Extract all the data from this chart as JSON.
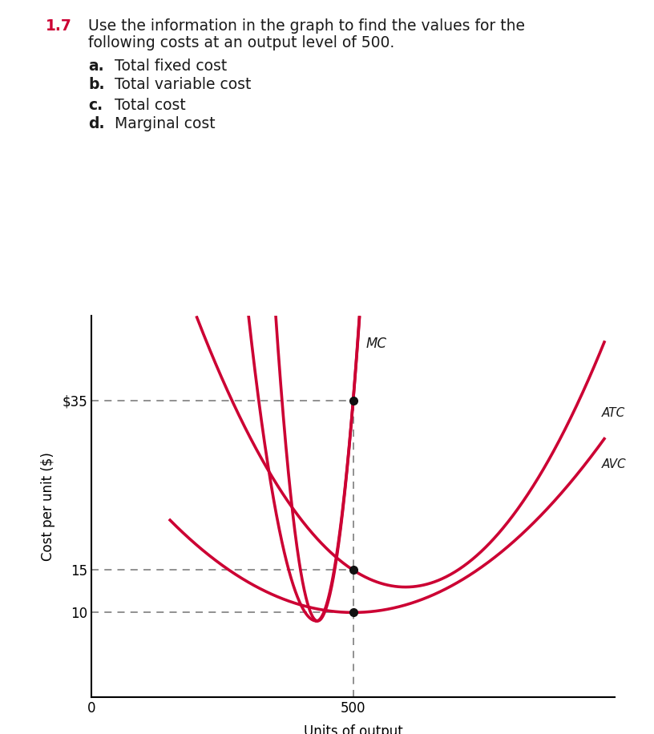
{
  "title_number": "1.7",
  "title_line1": "Use the information in the graph to find the values for the",
  "title_line2": "following costs at an output level of 500.",
  "items": [
    {
      "label": "a.",
      "text": "Total fixed cost"
    },
    {
      "label": "b.",
      "text": "Total variable cost"
    },
    {
      "label": "c.",
      "text": "Total cost"
    },
    {
      "label": "d.",
      "text": "Marginal cost"
    }
  ],
  "xlabel": "Units of output",
  "ylabel": "Cost per unit ($)",
  "y_tick_labels": [
    "10",
    "15",
    "$35"
  ],
  "y_tick_values": [
    10,
    15,
    35
  ],
  "curve_color": "#cc0033",
  "dashed_color": "#888888",
  "xlim": [
    0,
    1000
  ],
  "ylim": [
    0,
    45
  ],
  "dot_points": [
    [
      500,
      35
    ],
    [
      500,
      15
    ],
    [
      500,
      10
    ]
  ],
  "mc_label": "MC",
  "atc_label": "ATC",
  "avc_label": "AVC",
  "font_color": "#1a1a1a",
  "title_color": "#cc0033"
}
